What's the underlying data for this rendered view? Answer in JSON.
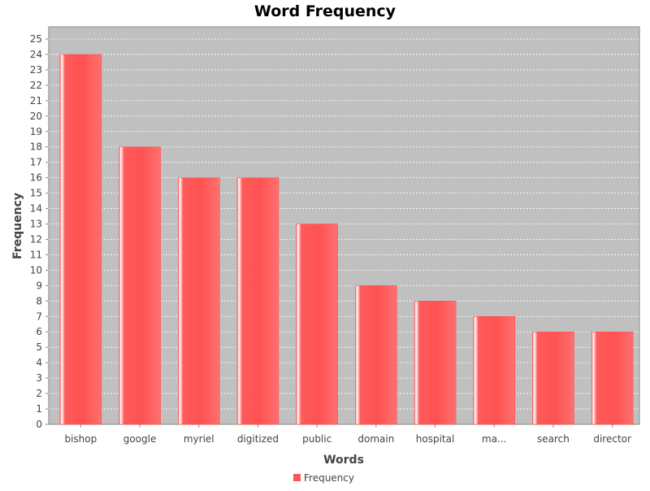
{
  "chart_data": {
    "type": "bar",
    "title": "Word Frequency",
    "xlabel": "Words",
    "ylabel": "Frequency",
    "categories": [
      "bishop",
      "google",
      "myriel",
      "digitized",
      "public",
      "domain",
      "hospital",
      "ma...",
      "search",
      "director"
    ],
    "series": [
      {
        "name": "Frequency",
        "values": [
          24,
          18,
          16,
          16,
          13,
          9,
          8,
          7,
          6,
          6
        ]
      }
    ],
    "ylim": [
      0,
      25
    ],
    "yticks": [
      0,
      1,
      2,
      3,
      4,
      5,
      6,
      7,
      8,
      9,
      10,
      11,
      12,
      13,
      14,
      15,
      16,
      17,
      18,
      19,
      20,
      21,
      22,
      23,
      24,
      25
    ],
    "grid": true,
    "legend_position": "bottom-center",
    "colors": {
      "bar": "#ff5555",
      "plot_background": "#c0c0c0",
      "gridline": "#ffffff"
    }
  }
}
